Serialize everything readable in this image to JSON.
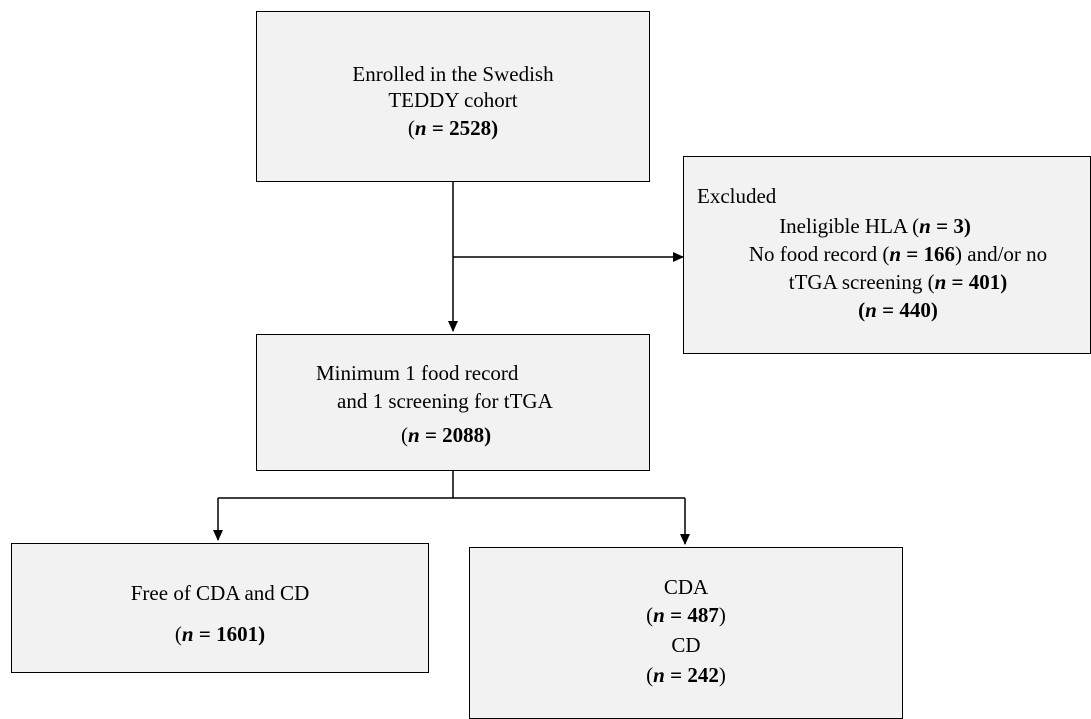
{
  "enrolled": {
    "line1": "Enrolled in the Swedish",
    "line2": "TEDDY cohort",
    "n_label": "n",
    "n_eq": " = ",
    "n_value": "2528"
  },
  "excluded": {
    "title": "Excluded",
    "hla_text": "Ineligible  HLA (",
    "hla_n": "3",
    "food_text": "No food record (",
    "food_n": "166",
    "food_tail": ") and/or no",
    "ttga_text": "tTGA screening (",
    "ttga_n": "401",
    "total_n": "440"
  },
  "minimum": {
    "line1": "Minimum 1 food record",
    "line2": "and 1 screening for tTGA",
    "n_value": "2088"
  },
  "free": {
    "line1": "Free of CDA and CD",
    "n_value": "1601"
  },
  "cda_cd": {
    "cda_label": "CDA",
    "cda_n": "487",
    "cd_label": "CD",
    "cd_n": "242"
  }
}
